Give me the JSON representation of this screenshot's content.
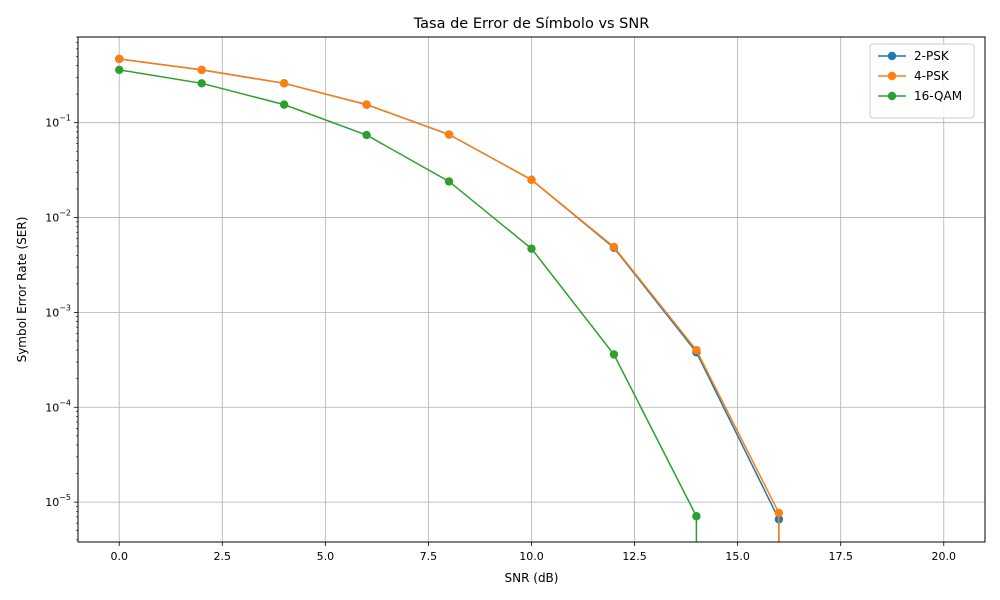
{
  "chart_data": {
    "type": "line",
    "title": "Tasa de Error de Símbolo vs SNR",
    "xlabel": "SNR (dB)",
    "ylabel": "Symbol Error Rate (SER)",
    "xscale": "linear",
    "yscale": "log",
    "xlim": [
      -1,
      21
    ],
    "ylim": [
      3.8e-06,
      0.8
    ],
    "x_ticks": [
      0.0,
      2.5,
      5.0,
      7.5,
      10.0,
      12.5,
      15.0,
      17.5,
      20.0
    ],
    "x_tick_labels": [
      "0.0",
      "2.5",
      "5.0",
      "7.5",
      "10.0",
      "12.5",
      "15.0",
      "17.5",
      "20.0"
    ],
    "y_ticks": [
      1e-05,
      0.0001,
      0.001,
      0.01,
      0.1
    ],
    "y_tick_labels": [
      {
        "base": "10",
        "exp": "−5"
      },
      {
        "base": "10",
        "exp": "−4"
      },
      {
        "base": "10",
        "exp": "−3"
      },
      {
        "base": "10",
        "exp": "−2"
      },
      {
        "base": "10",
        "exp": "−1"
      }
    ],
    "grid": true,
    "legend_position": "top-right",
    "x": [
      0,
      2,
      4,
      6,
      8,
      10,
      12,
      14,
      16,
      18,
      20
    ],
    "series": [
      {
        "name": "2-PSK",
        "color": "#1f77b4",
        "marker": "circle",
        "values": [
          0.47,
          0.36,
          0.26,
          0.155,
          0.075,
          0.025,
          0.0048,
          0.00038,
          6.6e-06,
          0,
          0
        ]
      },
      {
        "name": "4-PSK",
        "color": "#ff7f0e",
        "marker": "circle",
        "values": [
          0.47,
          0.36,
          0.26,
          0.155,
          0.075,
          0.025,
          0.0049,
          0.0004,
          7.7e-06,
          0,
          0
        ]
      },
      {
        "name": "16-QAM",
        "color": "#2ca02c",
        "marker": "circle",
        "values": [
          0.36,
          0.26,
          0.155,
          0.074,
          0.024,
          0.0047,
          0.00036,
          7.1e-06,
          0,
          0,
          0
        ]
      }
    ]
  }
}
